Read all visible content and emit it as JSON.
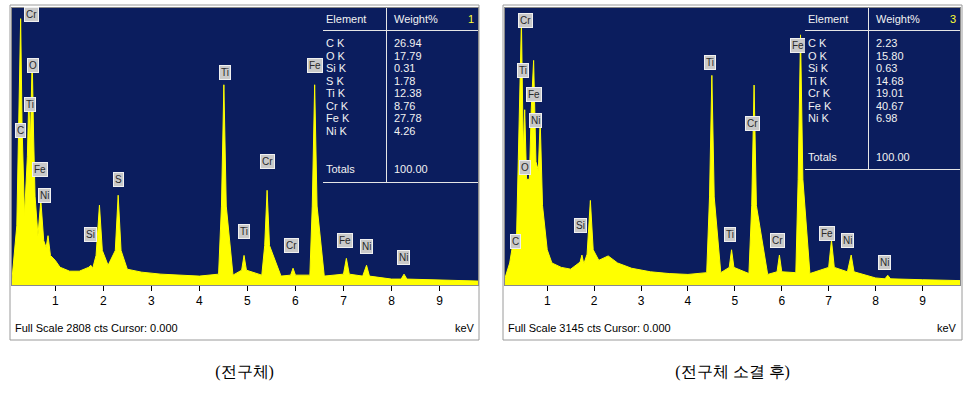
{
  "chart_data": [
    {
      "type": "line",
      "title": "(전구체)",
      "x_label": "keV",
      "footer": "Full Scale 2808 cts Cursor: 0.000",
      "color": "#ffff00",
      "x": [
        0.0,
        0.1,
        0.2,
        0.25,
        0.28,
        0.31,
        0.36,
        0.42,
        0.45,
        0.48,
        0.52,
        0.55,
        0.58,
        0.64,
        0.7,
        0.76,
        0.81,
        0.85,
        0.9,
        1.0,
        1.1,
        1.3,
        1.5,
        1.7,
        1.74,
        1.78,
        1.85,
        1.92,
        1.98,
        2.1,
        2.25,
        2.31,
        2.37,
        2.5,
        2.8,
        3.2,
        3.6,
        4.0,
        4.4,
        4.46,
        4.51,
        4.56,
        4.7,
        4.88,
        4.93,
        4.98,
        5.3,
        5.36,
        5.41,
        5.46,
        5.7,
        5.9,
        5.95,
        6.0,
        6.3,
        6.35,
        6.4,
        6.45,
        6.6,
        7.0,
        7.06,
        7.12,
        7.4,
        7.48,
        7.54,
        8.0,
        8.2,
        8.26,
        8.32,
        9.0,
        9.8
      ],
      "values": [
        0,
        60,
        600,
        1800,
        2700,
        1600,
        700,
        1300,
        1900,
        1400,
        2300,
        1500,
        900,
        500,
        860,
        450,
        380,
        500,
        300,
        250,
        180,
        140,
        140,
        180,
        200,
        170,
        300,
        810,
        350,
        200,
        350,
        910,
        350,
        160,
        130,
        110,
        100,
        90,
        110,
        800,
        2030,
        800,
        100,
        150,
        300,
        150,
        100,
        400,
        960,
        400,
        90,
        100,
        170,
        100,
        100,
        800,
        2030,
        800,
        90,
        110,
        270,
        110,
        90,
        200,
        90,
        60,
        60,
        110,
        60,
        50,
        40
      ],
      "xlim": [
        0.1,
        9.8
      ],
      "xticks": [
        1,
        2,
        3,
        4,
        5,
        6,
        7,
        8,
        9
      ],
      "ylim": [
        0,
        2808
      ],
      "tick_labels": "x",
      "grid": false,
      "peak_labels": [
        {
          "text": "C",
          "x": 0.27,
          "y": 1570
        },
        {
          "text": "Cr",
          "x": 0.5,
          "y": 2740
        },
        {
          "text": "O",
          "x": 0.54,
          "y": 2230
        },
        {
          "text": "Ti",
          "x": 0.48,
          "y": 1830
        },
        {
          "text": "Fe",
          "x": 0.69,
          "y": 1170
        },
        {
          "text": "Ni",
          "x": 0.77,
          "y": 910
        },
        {
          "text": "Si",
          "x": 1.73,
          "y": 510
        },
        {
          "text": "S",
          "x": 2.32,
          "y": 1065
        },
        {
          "text": "Ti",
          "x": 4.53,
          "y": 2150
        },
        {
          "text": "Ti",
          "x": 4.93,
          "y": 540
        },
        {
          "text": "Cr",
          "x": 5.41,
          "y": 1250
        },
        {
          "text": "Cr",
          "x": 5.91,
          "y": 405
        },
        {
          "text": "Fe",
          "x": 6.41,
          "y": 2230
        },
        {
          "text": "Fe",
          "x": 7.04,
          "y": 455
        },
        {
          "text": "Ni",
          "x": 7.47,
          "y": 395
        },
        {
          "text": "Ni",
          "x": 8.25,
          "y": 275
        }
      ],
      "table": {
        "number": "1",
        "header": [
          "Element",
          "Weight%"
        ],
        "rows": [
          [
            "C K",
            "26.94"
          ],
          [
            "O K",
            "17.79"
          ],
          [
            "Si K",
            "0.31"
          ],
          [
            "S K",
            "1.78"
          ],
          [
            "Ti K",
            "12.38"
          ],
          [
            "Cr K",
            "8.76"
          ],
          [
            "Fe K",
            "27.78"
          ],
          [
            "Ni K",
            "4.26"
          ]
        ],
        "totals": [
          "Totals",
          "100.00"
        ]
      }
    },
    {
      "type": "line",
      "title": "(전구체 소결 후)",
      "x_label": "keV",
      "footer": "Full Scale 3145 cts Cursor: 0.000",
      "color": "#ffff00",
      "x": [
        0.0,
        0.1,
        0.2,
        0.28,
        0.34,
        0.4,
        0.45,
        0.49,
        0.52,
        0.56,
        0.62,
        0.66,
        0.71,
        0.76,
        0.81,
        0.85,
        0.9,
        1.0,
        1.1,
        1.3,
        1.5,
        1.7,
        1.74,
        1.78,
        1.85,
        1.92,
        1.98,
        2.1,
        2.3,
        2.5,
        2.8,
        3.2,
        3.6,
        4.0,
        4.4,
        4.46,
        4.51,
        4.56,
        4.7,
        4.88,
        4.93,
        4.98,
        5.3,
        5.36,
        5.41,
        5.46,
        5.7,
        5.9,
        5.95,
        6.0,
        6.3,
        6.35,
        6.4,
        6.45,
        6.6,
        7.0,
        7.06,
        7.12,
        7.4,
        7.48,
        7.54,
        8.0,
        8.2,
        8.26,
        8.32,
        9.0,
        9.8
      ],
      "values": [
        0,
        80,
        250,
        510,
        400,
        1800,
        3000,
        1500,
        1990,
        1200,
        1200,
        2000,
        2550,
        1400,
        1300,
        1870,
        900,
        400,
        250,
        200,
        180,
        260,
        340,
        240,
        350,
        960,
        400,
        280,
        330,
        250,
        190,
        150,
        130,
        120,
        140,
        1000,
        2380,
        1000,
        140,
        200,
        400,
        200,
        130,
        900,
        2270,
        900,
        120,
        150,
        340,
        150,
        140,
        1200,
        2840,
        1200,
        130,
        200,
        510,
        200,
        150,
        340,
        150,
        80,
        70,
        110,
        70,
        60,
        50
      ],
      "xlim": [
        0.1,
        9.8
      ],
      "xticks": [
        1,
        2,
        3,
        4,
        5,
        6,
        7,
        8,
        9
      ],
      "ylim": [
        0,
        3145
      ],
      "tick_labels": "x",
      "grid": false,
      "peak_labels": [
        {
          "text": "Cr",
          "x": 0.53,
          "y": 3000
        },
        {
          "text": "Ti",
          "x": 0.49,
          "y": 2440
        },
        {
          "text": "Fe",
          "x": 0.72,
          "y": 2160
        },
        {
          "text": "Ni",
          "x": 0.76,
          "y": 1870
        },
        {
          "text": "O",
          "x": 0.53,
          "y": 1330
        },
        {
          "text": "C",
          "x": 0.32,
          "y": 490
        },
        {
          "text": "Si",
          "x": 1.72,
          "y": 680
        },
        {
          "text": "Ti",
          "x": 4.48,
          "y": 2530
        },
        {
          "text": "Ti",
          "x": 4.9,
          "y": 570
        },
        {
          "text": "Cr",
          "x": 5.37,
          "y": 1830
        },
        {
          "text": "Cr",
          "x": 5.9,
          "y": 510
        },
        {
          "text": "Fe",
          "x": 6.35,
          "y": 2720
        },
        {
          "text": "Fe",
          "x": 6.96,
          "y": 590
        },
        {
          "text": "Ni",
          "x": 7.41,
          "y": 500
        },
        {
          "text": "Ni",
          "x": 8.2,
          "y": 260
        }
      ],
      "table": {
        "number": "3",
        "header": [
          "Element",
          "Weight%"
        ],
        "rows": [
          [
            "C K",
            "2.23"
          ],
          [
            "O K",
            "15.80"
          ],
          [
            "Si K",
            "0.63"
          ],
          [
            "Ti K",
            "14.68"
          ],
          [
            "Cr K",
            "19.01"
          ],
          [
            "Fe K",
            "40.67"
          ],
          [
            "Ni K",
            "6.98"
          ]
        ],
        "totals": [
          "Totals",
          "100.00"
        ]
      }
    }
  ]
}
